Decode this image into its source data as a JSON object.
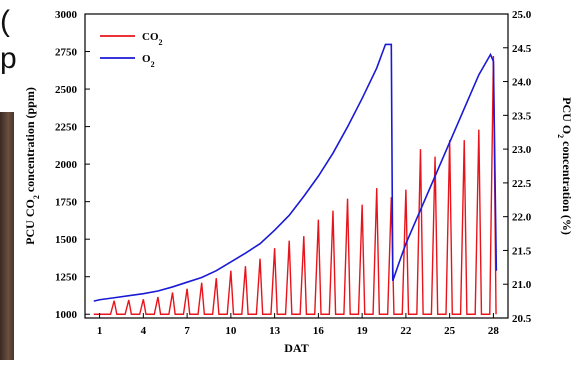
{
  "background_glyphs": [
    "(",
    "p"
  ],
  "chart_data": {
    "type": "line",
    "x_label": "DAT",
    "y_left_label": {
      "pre": "PCU CO",
      "sub": "2",
      "post": " concentration (ppm)"
    },
    "y_right_label": {
      "pre": "PCU O",
      "sub": "2",
      "post": " concentration (%)"
    },
    "x_range": [
      0,
      29
    ],
    "x_ticks": [
      1,
      4,
      7,
      10,
      13,
      16,
      19,
      22,
      25,
      28
    ],
    "y_left_range": [
      975,
      3000
    ],
    "y_left_ticks": [
      1000,
      1250,
      1500,
      1750,
      2000,
      2250,
      2500,
      2750,
      3000
    ],
    "y_right_range": [
      20.5,
      25.0
    ],
    "y_right_ticks": [
      "20.5",
      "21.0",
      "21.5",
      "22.0",
      "22.5",
      "23.0",
      "23.5",
      "24.0",
      "24.5",
      "25.0"
    ],
    "legend": [
      {
        "pre": "CO",
        "sub": "2",
        "color": "#e8141b",
        "axis": "left"
      },
      {
        "pre": "O",
        "sub": "2",
        "color": "#1a1ad6",
        "axis": "right"
      }
    ],
    "series": [
      {
        "axis": "left",
        "color": "#e8141b",
        "baseline": 1000,
        "spike_x": [
          2,
          3,
          4,
          5,
          6,
          7,
          8,
          9,
          10,
          11,
          12,
          13,
          14,
          15,
          16,
          17,
          18,
          19,
          20,
          21,
          22,
          23,
          24,
          25,
          26,
          27,
          28
        ],
        "spike_peak": [
          1090,
          1095,
          1100,
          1115,
          1145,
          1170,
          1210,
          1240,
          1290,
          1320,
          1370,
          1440,
          1490,
          1520,
          1630,
          1690,
          1770,
          1730,
          1840,
          1780,
          1830,
          2100,
          2050,
          2160,
          2160,
          2230,
          2720
        ]
      },
      {
        "axis": "right",
        "color": "#1a1ad6",
        "x": [
          0.6,
          1,
          2,
          3,
          4,
          5,
          6,
          7,
          8,
          9,
          10,
          11,
          12,
          13,
          14,
          15,
          16,
          17,
          18,
          19,
          20,
          20.6,
          21,
          21.1,
          21.5,
          22,
          23,
          24,
          25,
          26,
          27,
          27.8,
          28,
          28.2
        ],
        "y": [
          20.75,
          20.77,
          20.8,
          20.83,
          20.86,
          20.9,
          20.96,
          21.03,
          21.1,
          21.2,
          21.33,
          21.46,
          21.6,
          21.8,
          22.02,
          22.3,
          22.6,
          22.94,
          23.33,
          23.75,
          24.2,
          24.55,
          24.55,
          21.05,
          21.3,
          21.6,
          22.1,
          22.6,
          23.1,
          23.6,
          24.1,
          24.4,
          24.3,
          21.2
        ]
      }
    ]
  }
}
